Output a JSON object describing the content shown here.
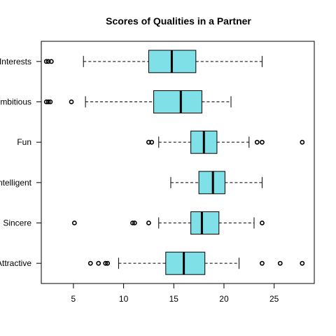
{
  "chart_data": {
    "type": "boxplot",
    "orientation": "horizontal",
    "title": "Scores of Qualities in a Partner",
    "xlabel": "",
    "ylabel": "",
    "xlim": [
      1.8,
      29.0
    ],
    "xticks": [
      5,
      10,
      15,
      20,
      25
    ],
    "box_color": "#7fe0e8",
    "categories": [
      "Attractive",
      "Sincere",
      "Intelligent",
      "Fun",
      "Ambitious",
      "Interests"
    ],
    "category_labels_as_shown": [
      "Attractive",
      "Sincere",
      "Intelligent",
      "Fun",
      "mbitious",
      "Interests"
    ],
    "boxes": [
      {
        "category": "Attractive",
        "whisker_low": 9.5,
        "q1": 14.2,
        "median": 16.0,
        "q3": 18.1,
        "whisker_high": 21.5,
        "outliers": [
          6.7,
          7.5,
          8.2,
          8.4,
          23.8,
          25.6,
          27.8
        ]
      },
      {
        "category": "Sincere",
        "whisker_low": 13.5,
        "q1": 16.7,
        "median": 17.8,
        "q3": 19.5,
        "whisker_high": 23.0,
        "outliers": [
          5.1,
          10.9,
          11.1,
          12.5,
          23.8
        ]
      },
      {
        "category": "Intelligent",
        "whisker_low": 14.7,
        "q1": 17.5,
        "median": 18.9,
        "q3": 20.1,
        "whisker_high": 23.8,
        "outliers": []
      },
      {
        "category": "Fun",
        "whisker_low": 13.5,
        "q1": 16.7,
        "median": 18.0,
        "q3": 19.3,
        "whisker_high": 22.5,
        "outliers": [
          12.5,
          12.8,
          23.3,
          23.8,
          27.8
        ]
      },
      {
        "category": "Ambitious",
        "whisker_low": 6.2,
        "q1": 13.0,
        "median": 15.7,
        "q3": 17.8,
        "whisker_high": 20.7,
        "outliers": [
          2.3,
          2.5,
          2.7,
          4.8
        ]
      },
      {
        "category": "Interests",
        "whisker_low": 6.0,
        "q1": 12.5,
        "median": 14.8,
        "q3": 17.2,
        "whisker_high": 23.8,
        "outliers": [
          2.3,
          2.5,
          2.8
        ]
      }
    ]
  }
}
